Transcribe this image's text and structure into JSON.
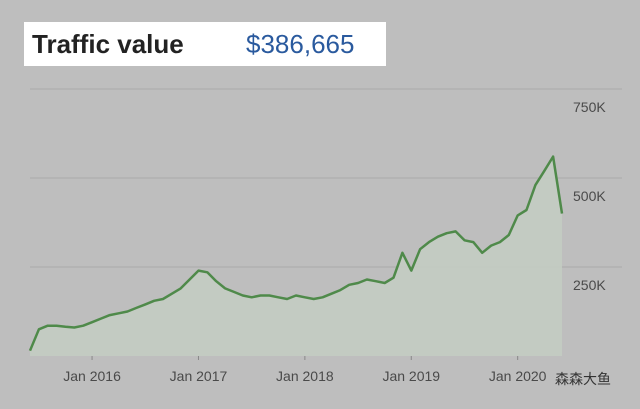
{
  "chart_data": {
    "type": "area",
    "title": "Traffic value",
    "subtitle": "$386,665",
    "watermark": "森森大鱼",
    "color": "#4f8a4a",
    "fill": "#c3ccc2",
    "grid": true,
    "x": [
      "2015-06",
      "2015-07",
      "2015-08",
      "2015-09",
      "2015-10",
      "2015-11",
      "2015-12",
      "2016-01",
      "2016-02",
      "2016-03",
      "2016-04",
      "2016-05",
      "2016-06",
      "2016-07",
      "2016-08",
      "2016-09",
      "2016-10",
      "2016-11",
      "2016-12",
      "2017-01",
      "2017-02",
      "2017-03",
      "2017-04",
      "2017-05",
      "2017-06",
      "2017-07",
      "2017-08",
      "2017-09",
      "2017-10",
      "2017-11",
      "2017-12",
      "2018-01",
      "2018-02",
      "2018-03",
      "2018-04",
      "2018-05",
      "2018-06",
      "2018-07",
      "2018-08",
      "2018-09",
      "2018-10",
      "2018-11",
      "2018-12",
      "2019-01",
      "2019-02",
      "2019-03",
      "2019-04",
      "2019-05",
      "2019-06",
      "2019-07",
      "2019-08",
      "2019-09",
      "2019-10",
      "2019-11",
      "2019-12",
      "2020-01",
      "2020-02",
      "2020-03",
      "2020-04",
      "2020-05",
      "2020-06"
    ],
    "values": [
      15000,
      75000,
      85000,
      85000,
      82000,
      80000,
      85000,
      95000,
      105000,
      115000,
      120000,
      125000,
      135000,
      145000,
      155000,
      160000,
      175000,
      190000,
      215000,
      240000,
      235000,
      210000,
      190000,
      180000,
      170000,
      165000,
      170000,
      170000,
      165000,
      160000,
      170000,
      165000,
      160000,
      165000,
      175000,
      185000,
      200000,
      205000,
      215000,
      210000,
      205000,
      220000,
      290000,
      240000,
      300000,
      320000,
      335000,
      345000,
      350000,
      325000,
      320000,
      290000,
      310000,
      320000,
      340000,
      395000,
      410000,
      480000,
      520000,
      560000,
      400000
    ],
    "xlim": [
      "2015-06",
      "2020-06"
    ],
    "xticks": [
      {
        "value": "2016-01",
        "label": "Jan 2016"
      },
      {
        "value": "2017-01",
        "label": "Jan 2017"
      },
      {
        "value": "2018-01",
        "label": "Jan 2018"
      },
      {
        "value": "2019-01",
        "label": "Jan 2019"
      },
      {
        "value": "2020-01",
        "label": "Jan 2020"
      }
    ],
    "ylim": [
      0,
      750000
    ],
    "yticks": [
      {
        "value": 250000,
        "label": "250K"
      },
      {
        "value": 500000,
        "label": "500K"
      },
      {
        "value": 750000,
        "label": "750K"
      }
    ]
  }
}
